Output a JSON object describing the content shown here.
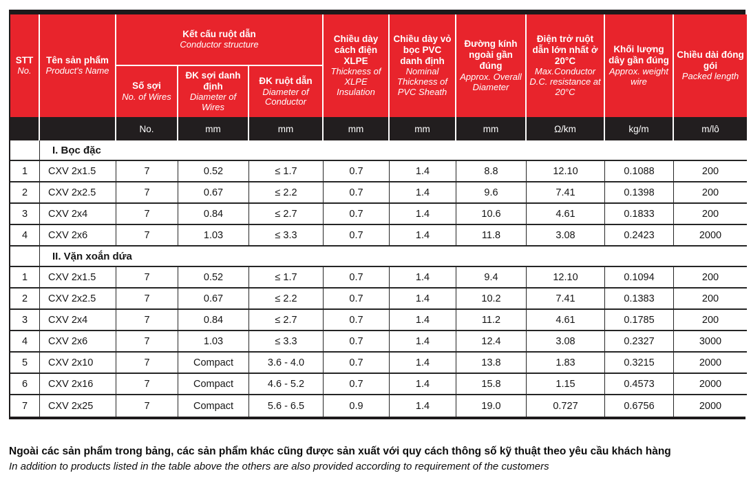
{
  "table": {
    "header": {
      "stt": {
        "vi": "STT",
        "en": "No."
      },
      "product": {
        "vi": "Tên sản phẩm",
        "en": "Product's Name"
      },
      "group": {
        "vi": "Kết cấu ruột dẫn",
        "en": "Conductor structure"
      },
      "sub": [
        {
          "vi": "Số sợi",
          "en": "No. of Wires"
        },
        {
          "vi": "ĐK sợi danh định",
          "en": "Diameter of Wires"
        },
        {
          "vi": "ĐK ruột dẫn",
          "en": "Diameter of Conductor"
        }
      ],
      "cols": [
        {
          "vi": "Chiều dày cách điện XLPE",
          "en": "Thickness of XLPE Insulation"
        },
        {
          "vi": "Chiều dày vỏ bọc PVC danh định",
          "en": "Nominal Thickness of PVC Sheath"
        },
        {
          "vi": "Đường kính ngoài gần đúng",
          "en": "Approx. Overall Diameter"
        },
        {
          "vi": "Điện trở ruột dẫn lớn nhất ở 20°C",
          "en": "Max.Conductor D.C. resistance at 20°C"
        },
        {
          "vi": "Khối lượng dây gần đúng",
          "en": "Approx. weight wire"
        },
        {
          "vi": "Chiều dài đóng gói",
          "en": "Packed length"
        }
      ]
    },
    "units": [
      "",
      "",
      "No.",
      "mm",
      "mm",
      "mm",
      "mm",
      "mm",
      "Ω/km",
      "kg/m",
      "m/lô"
    ],
    "sections": [
      {
        "title": "I. Bọc đặc",
        "rows": [
          [
            "1",
            "CXV 2x1.5",
            "7",
            "0.52",
            "≤ 1.7",
            "0.7",
            "1.4",
            "8.8",
            "12.10",
            "0.1088",
            "200"
          ],
          [
            "2",
            "CXV 2x2.5",
            "7",
            "0.67",
            "≤ 2.2",
            "0.7",
            "1.4",
            "9.6",
            "7.41",
            "0.1398",
            "200"
          ],
          [
            "3",
            "CXV 2x4",
            "7",
            "0.84",
            "≤ 2.7",
            "0.7",
            "1.4",
            "10.6",
            "4.61",
            "0.1833",
            "200"
          ],
          [
            "4",
            "CXV 2x6",
            "7",
            "1.03",
            "≤ 3.3",
            "0.7",
            "1.4",
            "11.8",
            "3.08",
            "0.2423",
            "2000"
          ]
        ]
      },
      {
        "title": "II. Vặn xoắn dứa",
        "rows": [
          [
            "1",
            "CXV 2x1.5",
            "7",
            "0.52",
            "≤ 1.7",
            "0.7",
            "1.4",
            "9.4",
            "12.10",
            "0.1094",
            "200"
          ],
          [
            "2",
            "CXV 2x2.5",
            "7",
            "0.67",
            "≤ 2.2",
            "0.7",
            "1.4",
            "10.2",
            "7.41",
            "0.1383",
            "200"
          ],
          [
            "3",
            "CXV 2x4",
            "7",
            "0.84",
            "≤ 2.7",
            "0.7",
            "1.4",
            "11.2",
            "4.61",
            "0.1785",
            "200"
          ],
          [
            "4",
            "CXV 2x6",
            "7",
            "1.03",
            "≤ 3.3",
            "0.7",
            "1.4",
            "12.4",
            "3.08",
            "0.2327",
            "3000"
          ],
          [
            "5",
            "CXV 2x10",
            "7",
            "Compact",
            "3.6 - 4.0",
            "0.7",
            "1.4",
            "13.8",
            "1.83",
            "0.3215",
            "2000"
          ],
          [
            "6",
            "CXV 2x16",
            "7",
            "Compact",
            "4.6 - 5.2",
            "0.7",
            "1.4",
            "15.8",
            "1.15",
            "0.4573",
            "2000"
          ],
          [
            "7",
            "CXV 2x25",
            "7",
            "Compact",
            "5.6 - 6.5",
            "0.9",
            "1.4",
            "19.0",
            "0.727",
            "0.6756",
            "2000"
          ]
        ]
      }
    ]
  },
  "footer": {
    "vi": "Ngoài các sản phẩm trong bảng, các sản phẩm khác cũng được sản xuất với quy cách thông số kỹ thuật  theo yêu cầu khách hàng",
    "en": "In addition to products listed in the table above the others are also provided according to requirement of the customers"
  },
  "colors": {
    "header_red": "#e8242c",
    "band_black": "#221e1f",
    "grid_black": "#242424"
  }
}
